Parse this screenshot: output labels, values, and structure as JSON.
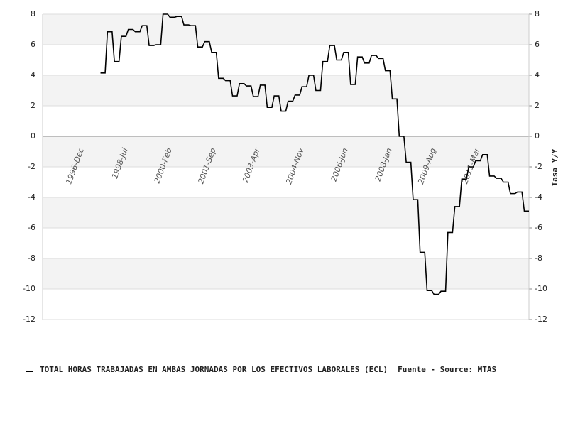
{
  "chart_data": {
    "type": "line",
    "categories": [
      null,
      null,
      null,
      null,
      null,
      null,
      null,
      null,
      null,
      null,
      null,
      null,
      null,
      null,
      null,
      null,
      "1996-Dec",
      null,
      null,
      null,
      null,
      null,
      null,
      null,
      null,
      null,
      null,
      null,
      null,
      null,
      null,
      null,
      null,
      null,
      null,
      "1998-Jul",
      null,
      null,
      null,
      null,
      null,
      null,
      null,
      null,
      null,
      null,
      null,
      null,
      null,
      null,
      null,
      null,
      null,
      null,
      "2000-Feb",
      null,
      null,
      null,
      null,
      null,
      null,
      null,
      null,
      null,
      null,
      null,
      null,
      null,
      null,
      null,
      null,
      null,
      null,
      "2001-Sep",
      null,
      null,
      null,
      null,
      null,
      null,
      null,
      null,
      null,
      null,
      null,
      null,
      null,
      null,
      null,
      null,
      null,
      null,
      "2003-Apr",
      null,
      null,
      null,
      null,
      null,
      null,
      null,
      null,
      null,
      null,
      null,
      null,
      null,
      null,
      null,
      null,
      null,
      null,
      "2004-Nov",
      null,
      null,
      null,
      null,
      null,
      null,
      null,
      null,
      null,
      null,
      null,
      null,
      null,
      null,
      null,
      null,
      null,
      null,
      "2006-Jun",
      null,
      null,
      null,
      null,
      null,
      null,
      null,
      null,
      null,
      null,
      null,
      null,
      null,
      null,
      null,
      null,
      null,
      null,
      "2008-Jan",
      null,
      null,
      null,
      null,
      null,
      null,
      null,
      null,
      null,
      null,
      null,
      null,
      null,
      null,
      null,
      null,
      null,
      null,
      "2009-Aug",
      null,
      null,
      null,
      null,
      null,
      null,
      null,
      null,
      null,
      null,
      null,
      null,
      null,
      null,
      null,
      null,
      null,
      null,
      "2011-Mar",
      null,
      null,
      null,
      null,
      null,
      null,
      null,
      null,
      null,
      null,
      null,
      null,
      null,
      null,
      null,
      null,
      null,
      null,
      null,
      null,
      null,
      null,
      null
    ],
    "series": [
      {
        "name": "TOTAL HORAS TRABAJADAS EN AMBAS JORNADAS POR LOS EFECTIVOS LABORALES (ECL)",
        "color": "#000000",
        "values": [
          null,
          null,
          null,
          null,
          null,
          null,
          null,
          null,
          null,
          null,
          null,
          null,
          null,
          null,
          null,
          null,
          null,
          null,
          null,
          null,
          null,
          null,
          null,
          null,
          null,
          4.15,
          4.15,
          4.15,
          6.85,
          6.85,
          6.85,
          4.9,
          4.9,
          4.9,
          6.55,
          6.55,
          6.55,
          7.0,
          7.0,
          7.0,
          6.85,
          6.85,
          6.85,
          7.25,
          7.25,
          7.25,
          5.95,
          5.95,
          5.95,
          6.0,
          6.0,
          6.0,
          8.0,
          8.0,
          8.0,
          7.8,
          7.8,
          7.8,
          7.85,
          7.85,
          7.85,
          7.3,
          7.3,
          7.3,
          7.25,
          7.25,
          7.25,
          5.85,
          5.85,
          5.85,
          6.2,
          6.2,
          6.2,
          5.5,
          5.5,
          5.5,
          3.8,
          3.8,
          3.8,
          3.65,
          3.65,
          3.65,
          2.65,
          2.65,
          2.65,
          3.45,
          3.45,
          3.45,
          3.3,
          3.3,
          3.3,
          2.6,
          2.6,
          2.6,
          3.35,
          3.35,
          3.35,
          1.9,
          1.9,
          1.9,
          2.65,
          2.65,
          2.65,
          1.65,
          1.65,
          1.65,
          2.3,
          2.3,
          2.3,
          2.7,
          2.7,
          2.7,
          3.25,
          3.25,
          3.25,
          4.0,
          4.0,
          4.0,
          3.0,
          3.0,
          3.0,
          4.9,
          4.9,
          4.9,
          5.95,
          5.95,
          5.95,
          5.0,
          5.0,
          5.0,
          5.5,
          5.5,
          5.5,
          3.4,
          3.4,
          3.4,
          5.2,
          5.2,
          5.2,
          4.8,
          4.8,
          4.8,
          5.3,
          5.3,
          5.3,
          5.1,
          5.1,
          5.1,
          4.3,
          4.3,
          4.3,
          2.45,
          2.45,
          2.45,
          0.0,
          0.0,
          0.0,
          -1.7,
          -1.7,
          -1.7,
          -4.15,
          -4.15,
          -4.15,
          -7.6,
          -7.6,
          -7.6,
          -10.1,
          -10.1,
          -10.1,
          -10.35,
          -10.35,
          -10.35,
          -10.15,
          -10.15,
          -10.15,
          -6.3,
          -6.3,
          -6.3,
          -4.6,
          -4.6,
          -4.6,
          -2.8,
          -2.8,
          -2.8,
          -2.0,
          -2.0,
          -2.0,
          -1.6,
          -1.6,
          -1.6,
          -1.2,
          -1.2,
          -1.2,
          -2.6,
          -2.6,
          -2.6,
          -2.75,
          -2.75,
          -2.75,
          -3.0,
          -3.0,
          -3.0,
          -3.75,
          -3.75,
          -3.75,
          -3.65,
          -3.65,
          -3.65,
          -4.9,
          -4.9,
          -4.9
        ]
      }
    ],
    "ylim": [
      -12,
      8
    ],
    "yticks": [
      8,
      6,
      4,
      2,
      0,
      -2,
      -4,
      -6,
      -8,
      -10,
      -12
    ],
    "y2lim": [
      -12,
      8
    ],
    "y2ticks": [
      8,
      6,
      4,
      2,
      0,
      -2,
      -4,
      -6,
      -8,
      -10,
      -12
    ],
    "y2label": "Tasa Y/Y",
    "source": "Fuente - Source: MTAS",
    "grid": true
  }
}
